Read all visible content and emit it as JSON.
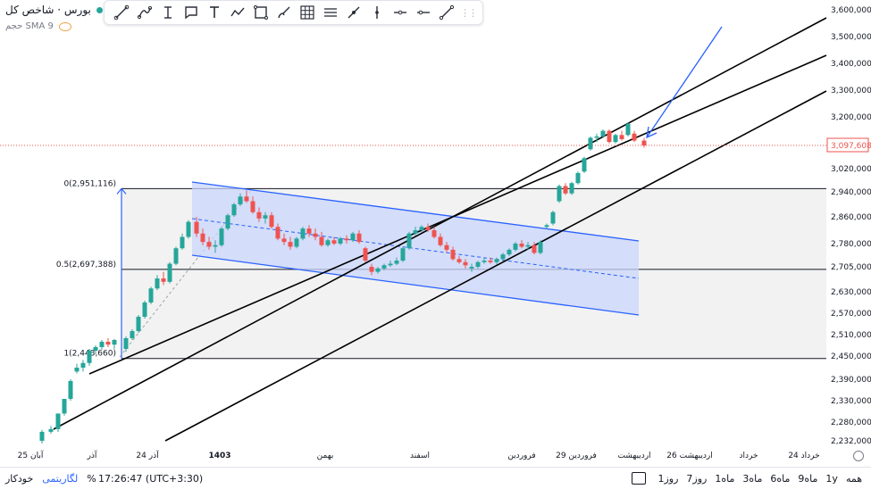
{
  "header": {
    "title": "بورس · شاخص کل",
    "indicator": "حجم SMA 9"
  },
  "toolbar": {
    "items": [
      "trend-line",
      "path",
      "text-cursor",
      "note",
      "text",
      "zigzag",
      "rectangle",
      "brush",
      "grid",
      "lines",
      "ray",
      "cross-line",
      "horizontal-line",
      "horizontal-ray",
      "angle-line"
    ]
  },
  "price_label": "3,097,608",
  "fib_labels": [
    "0(2,951,116)",
    "0.5(2,697,388)",
    "1(2,443,660)"
  ],
  "bottom": {
    "ranges": [
      "همه",
      "1y",
      "9ماه",
      "6ماه",
      "3ماه",
      "1ماه",
      "7روز",
      "1روز"
    ],
    "time": "17:26:47 (UTC+3:30)",
    "percent": "%",
    "log": "لگاریتمی",
    "auto": "خودکار"
  },
  "colors": {
    "up": "#26a69a",
    "down": "#ef5350",
    "channel": "#2962ff",
    "channel_fill": "#c9d6fb",
    "fib_zone": "#f2f2f2",
    "price_line": "#ef5350"
  },
  "chart_data": {
    "type": "candlestick",
    "y_ticks": [
      "3,600,000",
      "3,500,000",
      "3,400,000",
      "3,300,000",
      "3,200,000",
      "3,097,608",
      "3,020,000",
      "2,940,000",
      "2,860,000",
      "2,780,000",
      "2,705,000",
      "2,630,000",
      "2,570,000",
      "2,510,000",
      "2,450,000",
      "2,390,000",
      "2,330,000",
      "2,280,000",
      "2,232,000"
    ],
    "x_ticks": [
      "25 آبان",
      "آذر",
      "24 آذر",
      "1403",
      "بهمن",
      "اسفند",
      "فروردین",
      "29 فروردین",
      "اردیبهشت",
      "26 اردیبهشت",
      "خرداد",
      "24 خرداد"
    ],
    "last_price": 3097608,
    "fib_levels": [
      2951116,
      2697388,
      2443660
    ]
  }
}
